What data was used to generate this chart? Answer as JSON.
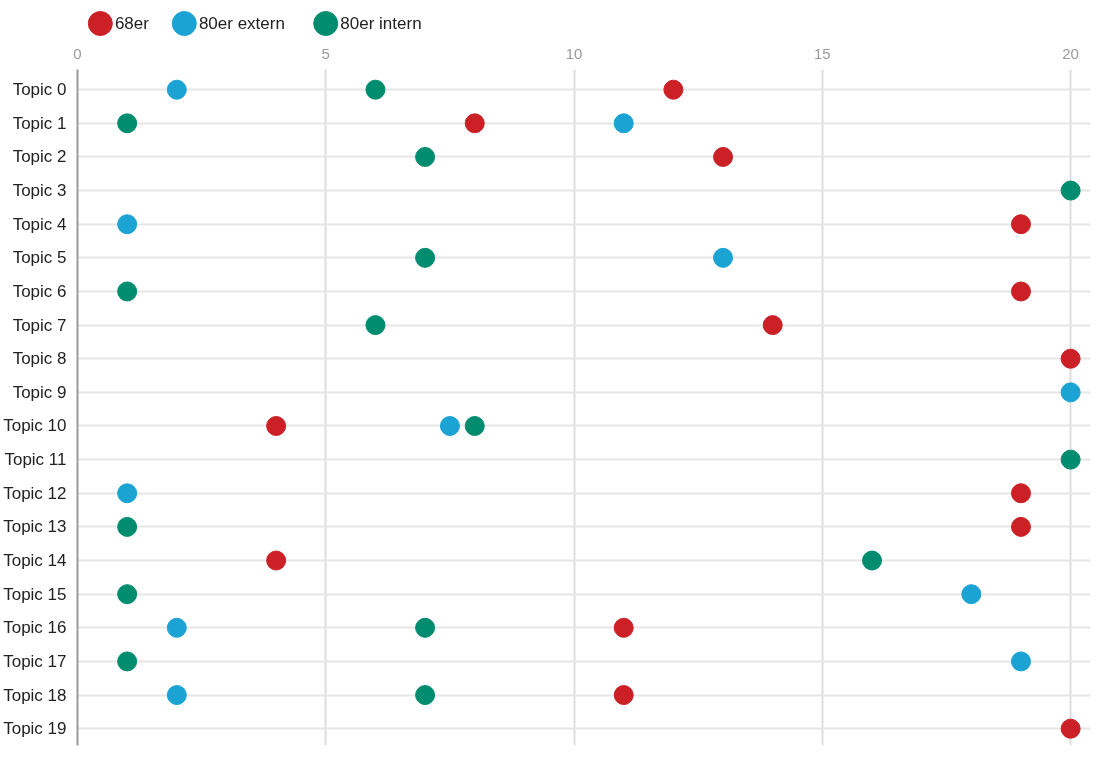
{
  "chart_data": {
    "type": "scatter",
    "categories": [
      "Topic 0",
      "Topic 1",
      "Topic 2",
      "Topic 3",
      "Topic 4",
      "Topic 5",
      "Topic 6",
      "Topic 7",
      "Topic 8",
      "Topic 9",
      "Topic 10",
      "Topic 11",
      "Topic 12",
      "Topic 13",
      "Topic 14",
      "Topic 15",
      "Topic 16",
      "Topic 17",
      "Topic 18",
      "Topic 19"
    ],
    "orientation": "horizontal",
    "xlim": [
      0,
      20.4
    ],
    "xticks": [
      0,
      5,
      10,
      15,
      20
    ],
    "grid": true,
    "legend": "top left",
    "marker": "circle",
    "series": [
      {
        "name": "68er",
        "color": "#cc2027",
        "values": [
          12,
          8,
          13,
          null,
          19,
          null,
          19,
          14,
          20,
          null,
          4,
          null,
          19,
          19,
          4,
          null,
          11,
          null,
          11,
          20
        ]
      },
      {
        "name": "80er extern",
        "color": "#1ba3d3",
        "values": [
          2,
          11,
          null,
          null,
          1,
          13,
          null,
          null,
          null,
          20,
          7.5,
          null,
          1,
          null,
          null,
          18,
          2,
          19,
          2,
          null
        ]
      },
      {
        "name": "80er intern",
        "color": "#008c6e",
        "values": [
          6,
          1,
          7,
          20,
          null,
          7,
          1,
          6,
          null,
          null,
          8,
          20,
          null,
          1,
          16,
          1,
          7,
          1,
          7,
          null
        ]
      }
    ]
  }
}
